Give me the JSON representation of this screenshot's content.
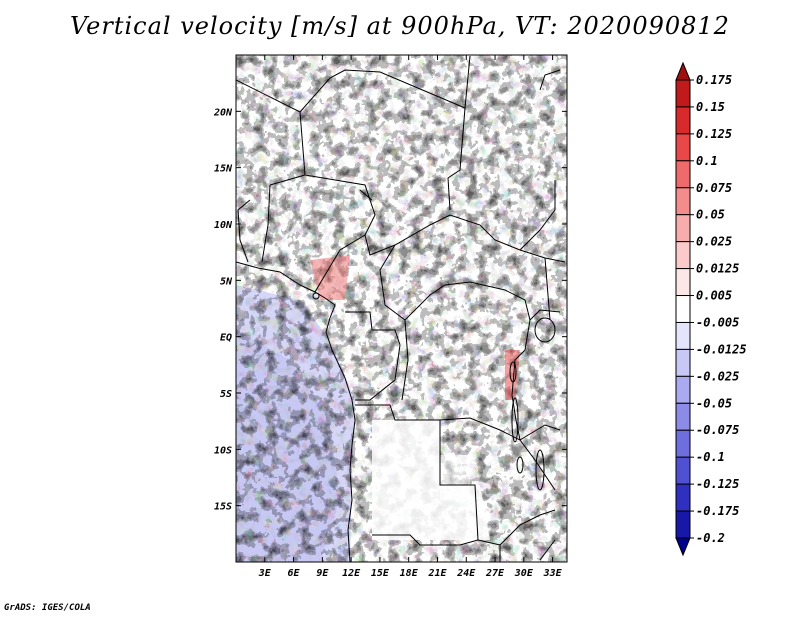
{
  "title": "Vertical velocity [m/s] at 900hPa, VT: 2020090812",
  "credit": "GrADS: IGES/COLA",
  "map": {
    "lon_range": [
      0,
      34.5
    ],
    "lat_range": [
      -20,
      25
    ],
    "x_ticks": [
      "3E",
      "6E",
      "9E",
      "12E",
      "15E",
      "18E",
      "21E",
      "24E",
      "27E",
      "30E",
      "33E"
    ],
    "y_ticks": [
      "20N",
      "15N",
      "10N",
      "5N",
      "EQ",
      "5S",
      "10S",
      "15S"
    ],
    "y_tick_values": [
      20,
      15,
      10,
      5,
      0,
      -5,
      -10,
      -15
    ],
    "x_tick_values": [
      3,
      6,
      9,
      12,
      15,
      18,
      21,
      24,
      27,
      30,
      33
    ]
  },
  "colorbar": {
    "labels": [
      "0.175",
      "0.15",
      "0.125",
      "0.1",
      "0.075",
      "0.05",
      "0.025",
      "0.0125",
      "0.005",
      "-0.005",
      "-0.0125",
      "-0.025",
      "-0.05",
      "-0.075",
      "-0.1",
      "-0.125",
      "-0.175",
      "-0.2"
    ],
    "colors": [
      "#a01010",
      "#c01a1a",
      "#d82a2a",
      "#e84848",
      "#ef6a6a",
      "#f48c8c",
      "#f8adad",
      "#fbcaca",
      "#fde6e6",
      "#ffffff",
      "#e4e4fb",
      "#c8c8f6",
      "#aaaaf0",
      "#8c8ce8",
      "#6e6ede",
      "#5050d2",
      "#3030c0",
      "#1818a8",
      "#000090"
    ]
  }
}
